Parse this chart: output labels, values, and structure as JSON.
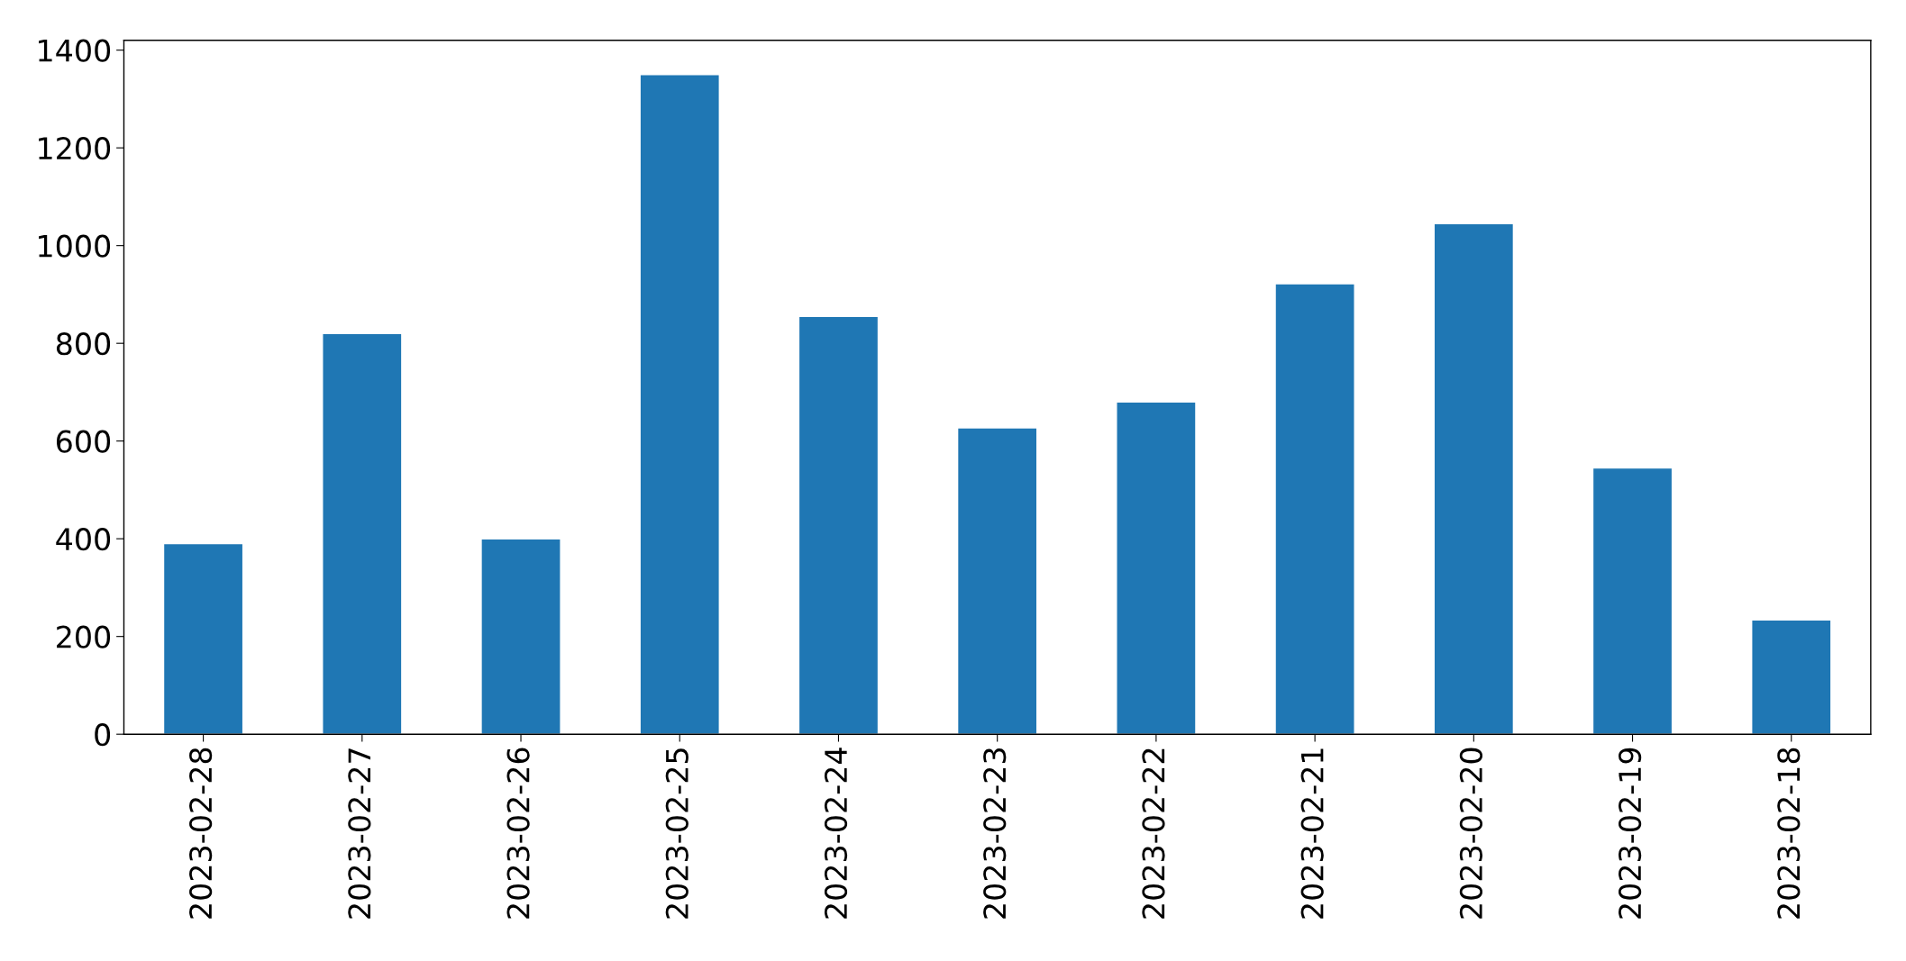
{
  "chart_data": {
    "type": "bar",
    "categories": [
      "2023-02-28",
      "2023-02-27",
      "2023-02-26",
      "2023-02-25",
      "2023-02-24",
      "2023-02-23",
      "2023-02-22",
      "2023-02-21",
      "2023-02-20",
      "2023-02-19",
      "2023-02-18"
    ],
    "values": [
      390,
      820,
      400,
      1350,
      855,
      627,
      680,
      922,
      1045,
      545,
      234
    ],
    "color": "#1f77b4",
    "ylim": [
      0,
      1420
    ],
    "yticks": [
      0,
      200,
      400,
      600,
      800,
      1000,
      1200,
      1400
    ],
    "grid": false
  }
}
